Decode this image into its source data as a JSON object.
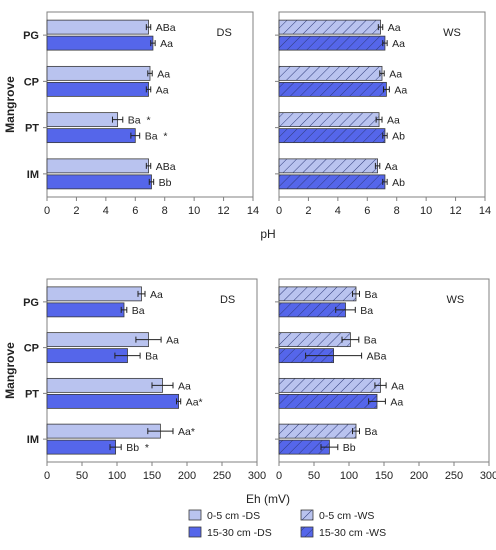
{
  "chart_data": [
    {
      "type": "bar",
      "orientation": "horizontal",
      "panel": "DS",
      "label": "DS",
      "categories": [
        "PG",
        "CP",
        "PT",
        "IM"
      ],
      "ylabel": "Mangrove",
      "xlabel": "pH",
      "xlim": [
        0,
        14
      ],
      "xticks": [
        "0",
        "2",
        "4",
        "6",
        "8",
        "10",
        "12",
        "14"
      ],
      "series": [
        {
          "name": "0-5 cm -DS",
          "values": [
            6.9,
            7.0,
            4.8,
            6.9
          ],
          "errors": [
            0.15,
            0.15,
            0.35,
            0.15
          ],
          "annotations": [
            "ABa",
            "Aa",
            "Ba  *",
            "ABa"
          ]
        },
        {
          "name": "15-30 cm -DS",
          "values": [
            7.2,
            6.9,
            6.0,
            7.1
          ],
          "errors": [
            0.15,
            0.15,
            0.3,
            0.15
          ],
          "annotations": [
            "Aa",
            "Aa",
            "Ba  *",
            "Bb"
          ]
        }
      ]
    },
    {
      "type": "bar",
      "orientation": "horizontal",
      "panel": "WS",
      "label": "WS",
      "categories": [
        "PG",
        "CP",
        "PT",
        "IM"
      ],
      "ylabel": "",
      "xlabel": "",
      "xlim": [
        0,
        14
      ],
      "xticks": [
        "0",
        "2",
        "4",
        "6",
        "8",
        "10",
        "12",
        "14"
      ],
      "series": [
        {
          "name": "0-5 cm -WS",
          "values": [
            6.9,
            7.0,
            6.8,
            6.7
          ],
          "errors": [
            0.15,
            0.15,
            0.2,
            0.15
          ],
          "annotations": [
            "Aa",
            "Aa",
            "Aa",
            "Aa"
          ]
        },
        {
          "name": "15-30 cm -WS",
          "values": [
            7.2,
            7.3,
            7.2,
            7.2
          ],
          "errors": [
            0.15,
            0.2,
            0.15,
            0.15
          ],
          "annotations": [
            "Aa",
            "Aa",
            "Ab",
            "Ab"
          ]
        }
      ]
    },
    {
      "type": "bar",
      "orientation": "horizontal",
      "panel": "DS",
      "label": "DS",
      "categories": [
        "PG",
        "CP",
        "PT",
        "IM"
      ],
      "ylabel": "Mangrove",
      "xlabel": "Eh (mV)",
      "xlim": [
        0,
        300
      ],
      "xticks": [
        "0",
        "50",
        "100",
        "150",
        "200",
        "250",
        "300"
      ],
      "series": [
        {
          "name": "0-5 cm -DS",
          "values": [
            135,
            145,
            165,
            162
          ],
          "errors": [
            5,
            18,
            15,
            18
          ],
          "annotations": [
            "Aa",
            "Aa",
            "Aa",
            "Aa*"
          ]
        },
        {
          "name": "15-30 cm -DS",
          "values": [
            110,
            115,
            188,
            98
          ],
          "errors": [
            4,
            18,
            3,
            8
          ],
          "annotations": [
            "Ba",
            "Ba",
            "Aa*",
            "Bb  *"
          ]
        }
      ]
    },
    {
      "type": "bar",
      "orientation": "horizontal",
      "panel": "WS",
      "label": "WS",
      "categories": [
        "PG",
        "CP",
        "PT",
        "IM"
      ],
      "ylabel": "",
      "xlabel": "",
      "xlim": [
        0,
        300
      ],
      "xticks": [
        "0",
        "50",
        "100",
        "150",
        "200",
        "250",
        "300"
      ],
      "series": [
        {
          "name": "0-5 cm -WS",
          "values": [
            110,
            102,
            145,
            110
          ],
          "errors": [
            5,
            12,
            8,
            5
          ],
          "annotations": [
            "Ba",
            "Ba",
            "Aa",
            "Ba"
          ]
        },
        {
          "name": "15-30 cm -WS",
          "values": [
            95,
            78,
            140,
            72
          ],
          "errors": [
            14,
            40,
            12,
            12
          ],
          "annotations": [
            "Ba",
            "ABa",
            "Aa",
            "Bb"
          ]
        }
      ]
    }
  ],
  "shared_xlabel_top": "pH",
  "legend": {
    "placement": "bottom",
    "items": [
      {
        "label": "0-5 cm -DS",
        "style": "solid",
        "color": "#b9c3ef"
      },
      {
        "label": "0-5 cm -WS",
        "style": "hatch",
        "color": "#b9c3ef"
      },
      {
        "label": "15-30 cm -DS",
        "style": "solid",
        "color": "#5566ea"
      },
      {
        "label": "15-30 cm -WS",
        "style": "hatch",
        "color": "#5566ea"
      }
    ]
  },
  "colors": {
    "light": "#b9c3ef",
    "dark": "#5566ea",
    "edge": "#3a3a3a",
    "hatch": "#2e3a7a",
    "axis": "#808080",
    "annotation": "#333333"
  }
}
